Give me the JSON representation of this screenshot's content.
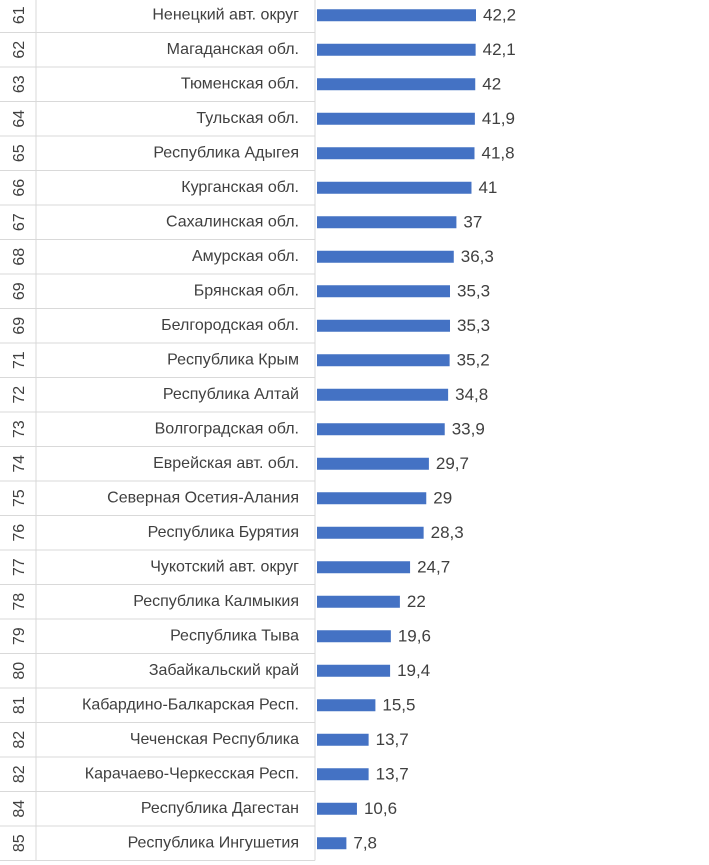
{
  "chart_data": {
    "type": "bar",
    "orientation": "horizontal",
    "bar_color": "#4472C4",
    "grid": false,
    "legend": "none",
    "xlim": [
      0,
      42.2
    ],
    "rows": [
      {
        "rank": "61",
        "region": "Ненецкий авт. округ",
        "value": 42.2,
        "label": "42,2"
      },
      {
        "rank": "62",
        "region": "Магаданская обл.",
        "value": 42.1,
        "label": "42,1"
      },
      {
        "rank": "63",
        "region": "Тюменская обл.",
        "value": 42,
        "label": "42"
      },
      {
        "rank": "64",
        "region": "Тульская обл.",
        "value": 41.9,
        "label": "41,9"
      },
      {
        "rank": "65",
        "region": "Республика Адыгея",
        "value": 41.8,
        "label": "41,8"
      },
      {
        "rank": "66",
        "region": "Курганская обл.",
        "value": 41,
        "label": "41"
      },
      {
        "rank": "67",
        "region": "Сахалинская обл.",
        "value": 37,
        "label": "37"
      },
      {
        "rank": "68",
        "region": "Амурская обл.",
        "value": 36.3,
        "label": "36,3"
      },
      {
        "rank": "69",
        "region": "Брянская обл.",
        "value": 35.3,
        "label": "35,3"
      },
      {
        "rank": "69",
        "region": "Белгородская обл.",
        "value": 35.3,
        "label": "35,3"
      },
      {
        "rank": "71",
        "region": "Республика Крым",
        "value": 35.2,
        "label": "35,2"
      },
      {
        "rank": "72",
        "region": "Республика Алтай",
        "value": 34.8,
        "label": "34,8"
      },
      {
        "rank": "73",
        "region": "Волгоградская обл.",
        "value": 33.9,
        "label": "33,9"
      },
      {
        "rank": "74",
        "region": "Еврейская авт. обл.",
        "value": 29.7,
        "label": "29,7"
      },
      {
        "rank": "75",
        "region": "Северная Осетия-Алания",
        "value": 29,
        "label": "29"
      },
      {
        "rank": "76",
        "region": "Республика Бурятия",
        "value": 28.3,
        "label": "28,3"
      },
      {
        "rank": "77",
        "region": "Чукотский авт. округ",
        "value": 24.7,
        "label": "24,7"
      },
      {
        "rank": "78",
        "region": "Республика Калмыкия",
        "value": 22,
        "label": "22"
      },
      {
        "rank": "79",
        "region": "Республика Тыва",
        "value": 19.6,
        "label": "19,6"
      },
      {
        "rank": "80",
        "region": "Забайкальский край",
        "value": 19.4,
        "label": "19,4"
      },
      {
        "rank": "81",
        "region": "Кабардино-Балкарская Респ.",
        "value": 15.5,
        "label": "15,5"
      },
      {
        "rank": "82",
        "region": "Чеченская Республика",
        "value": 13.7,
        "label": "13,7"
      },
      {
        "rank": "82",
        "region": "Карачаево-Черкесская Респ.",
        "value": 13.7,
        "label": "13,7"
      },
      {
        "rank": "84",
        "region": "Республика Дагестан",
        "value": 10.6,
        "label": "10,6"
      },
      {
        "rank": "85",
        "region": "Республика Ингушетия",
        "value": 7.8,
        "label": "7,8"
      }
    ]
  }
}
